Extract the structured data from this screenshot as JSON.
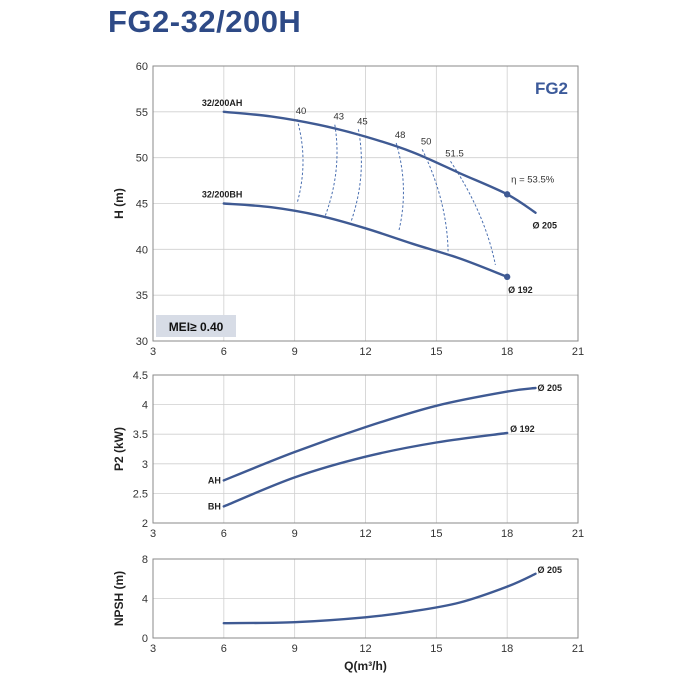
{
  "title": "FG2-32/200H",
  "colors": {
    "curve": "#3f5a93",
    "grid": "#cfcfcf",
    "frame": "#8a8a8a",
    "title": "#2e4a86",
    "efficiency": "#4a6fb0",
    "meiBox": "#d7dce6"
  },
  "chart_data": [
    {
      "type": "line",
      "brand": "FG2",
      "badge": "MEI≥ 0.40",
      "ylabel": "H (m)",
      "xlim": [
        3,
        21
      ],
      "ylim": [
        30,
        60
      ],
      "xticks": [
        3,
        6,
        9,
        12,
        15,
        18,
        21
      ],
      "yticks": [
        30,
        35,
        40,
        45,
        50,
        55,
        60
      ],
      "grid": true,
      "series": [
        {
          "name": "32/200AH",
          "end_label": "Ø 205",
          "end_marker": true,
          "x": [
            6,
            8,
            10,
            12,
            14,
            16,
            18,
            19.2
          ],
          "y": [
            55,
            54.5,
            53.6,
            52.3,
            50.6,
            48.3,
            46,
            44
          ]
        },
        {
          "name": "32/200BH",
          "end_label": "Ø 192",
          "end_marker": true,
          "x": [
            6,
            8,
            10,
            12,
            14,
            16,
            18
          ],
          "y": [
            45,
            44.6,
            43.7,
            42.3,
            40.6,
            39,
            37
          ]
        }
      ],
      "efficiency_curves": [
        {
          "label": "40",
          "top": [
            9.1,
            54.2
          ],
          "bottom": [
            9.1,
            45
          ]
        },
        {
          "label": "43",
          "top": [
            10.7,
            53.6
          ],
          "bottom": [
            10.3,
            43.7
          ]
        },
        {
          "label": "45",
          "top": [
            11.7,
            53.1
          ],
          "bottom": [
            11.4,
            43.1
          ]
        },
        {
          "label": "48",
          "top": [
            13.3,
            51.6
          ],
          "bottom": [
            13.4,
            41.9
          ]
        },
        {
          "label": "50",
          "top": [
            14.4,
            50.9
          ],
          "bottom": [
            15.5,
            39.7
          ]
        },
        {
          "label": "51.5",
          "top": [
            15.6,
            49.6
          ],
          "bottom": [
            17.5,
            38.3
          ]
        }
      ],
      "peak_efficiency": {
        "label": "η = 53.5%",
        "x": 18,
        "y": 46
      }
    },
    {
      "type": "line",
      "ylabel": "P2 (kW)",
      "xlim": [
        3,
        21
      ],
      "ylim": [
        2,
        4.5
      ],
      "xticks": [
        3,
        6,
        9,
        12,
        15,
        18,
        21
      ],
      "yticks": [
        2,
        2.5,
        3,
        3.5,
        4,
        4.5
      ],
      "grid": true,
      "series": [
        {
          "name": "AH",
          "end_label": "Ø 205",
          "x": [
            6,
            9,
            12,
            15,
            18,
            19.2
          ],
          "y": [
            2.72,
            3.2,
            3.62,
            3.98,
            4.22,
            4.28
          ]
        },
        {
          "name": "BH",
          "end_label": "Ø 192",
          "x": [
            6,
            9,
            12,
            15,
            18
          ],
          "y": [
            2.28,
            2.77,
            3.12,
            3.36,
            3.52
          ]
        }
      ]
    },
    {
      "type": "line",
      "ylabel": "NPSH (m)",
      "xlabel": "Q(m³/h)",
      "xlim": [
        3,
        21
      ],
      "ylim": [
        0,
        8
      ],
      "xticks": [
        3,
        6,
        9,
        12,
        15,
        18,
        21
      ],
      "yticks": [
        0,
        4,
        8
      ],
      "grid": true,
      "series": [
        {
          "end_label": "Ø 205",
          "x": [
            6,
            9,
            12,
            14,
            16,
            18,
            19.2
          ],
          "y": [
            1.5,
            1.6,
            2.1,
            2.7,
            3.6,
            5.2,
            6.5
          ]
        }
      ]
    }
  ]
}
